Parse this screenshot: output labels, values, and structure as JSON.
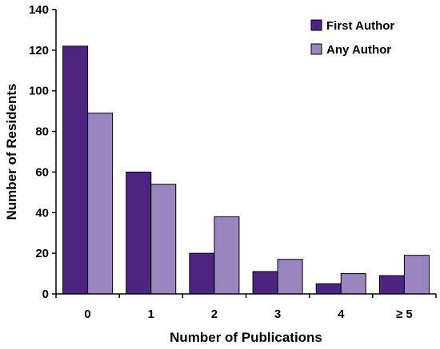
{
  "chart_data": {
    "type": "bar",
    "categories": [
      "0",
      "1",
      "2",
      "3",
      "4",
      "≥ 5"
    ],
    "series": [
      {
        "name": "First Author",
        "values": [
          122,
          60,
          20,
          11,
          5,
          9
        ],
        "color": "#4f2382"
      },
      {
        "name": "Any Author",
        "values": [
          89,
          54,
          38,
          17,
          10,
          19
        ],
        "color": "#9a85c0"
      }
    ],
    "xlabel": "Number of Publications",
    "ylabel": "Number of Residents",
    "ylim": [
      0,
      140
    ],
    "yticks": [
      0,
      20,
      40,
      60,
      80,
      100,
      120,
      140
    ],
    "grid": false,
    "legend_position": "top-right"
  }
}
